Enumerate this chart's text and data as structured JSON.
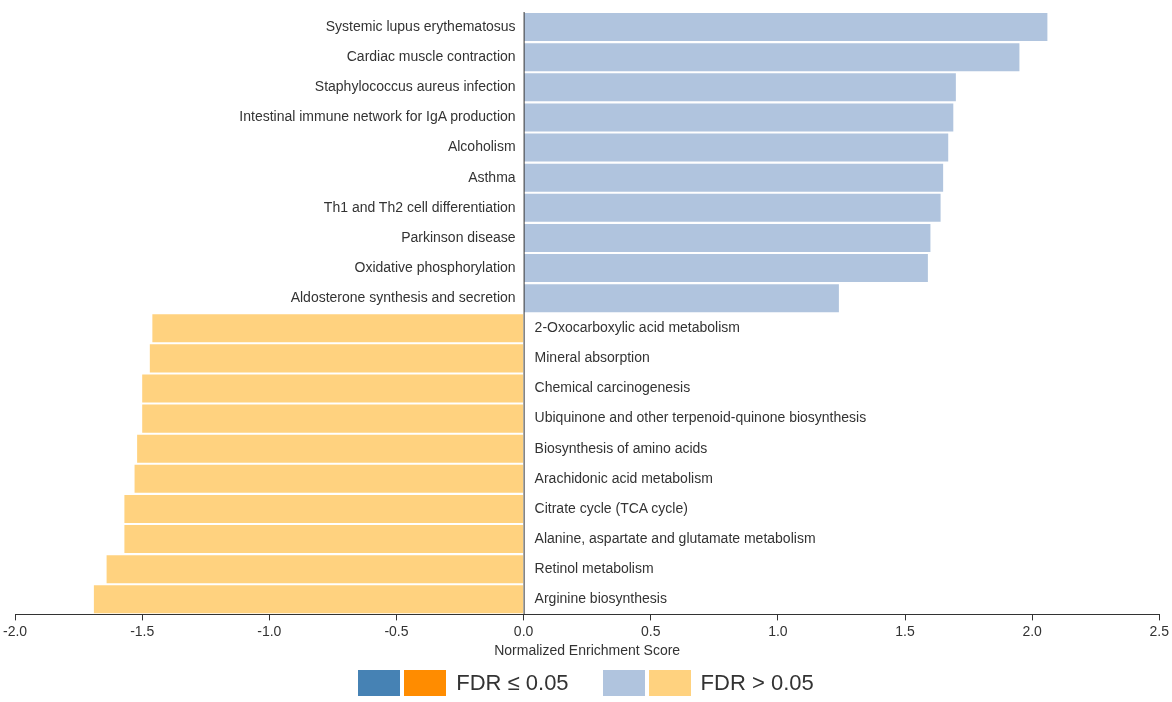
{
  "chart_data": {
    "type": "bar",
    "orientation": "horizontal",
    "xlabel": "Normalized Enrichment Score",
    "categories": [
      "Systemic lupus erythematosus",
      "Cardiac muscle contraction",
      "Staphylococcus aureus infection",
      "Intestinal immune network for IgA production",
      "Alcoholism",
      "Asthma",
      "Th1 and Th2 cell differentiation",
      "Parkinson disease",
      "Oxidative phosphorylation",
      "Aldosterone synthesis and secretion",
      "2-Oxocarboxylic acid metabolism",
      "Mineral absorption",
      "Chemical carcinogenesis",
      "Ubiquinone and other terpenoid-quinone biosynthesis",
      "Biosynthesis of amino acids",
      "Arachidonic acid metabolism",
      "Citrate cycle (TCA cycle)",
      "Alanine, aspartate and glutamate metabolism",
      "Retinol metabolism",
      "Arginine biosynthesis"
    ],
    "series": [
      {
        "name": "FDR ≤ 0.05",
        "colors": [
          "#4682b4",
          "#4682b4",
          "#4682b4",
          "#4682b4",
          "#4682b4",
          "#4682b4",
          "#4682b4",
          "#4682b4",
          "#4682b4",
          "#4682b4",
          "#ff8c00",
          "#ff8c00",
          "#ff8c00",
          "#ff8c00",
          "#ff8c00",
          "#ff8c00",
          "#ff8c00",
          "#ff8c00",
          "#ff8c00",
          "#ff8c00"
        ],
        "values": [
          null,
          null,
          null,
          null,
          null,
          null,
          null,
          null,
          null,
          null,
          null,
          null,
          null,
          null,
          null,
          null,
          null,
          null,
          null,
          null
        ]
      },
      {
        "name": "FDR > 0.05",
        "colors": [
          "#b0c4de",
          "#b0c4de",
          "#b0c4de",
          "#b0c4de",
          "#b0c4de",
          "#b0c4de",
          "#b0c4de",
          "#b0c4de",
          "#b0c4de",
          "#b0c4de",
          "#ffd27f",
          "#ffd27f",
          "#ffd27f",
          "#ffd27f",
          "#ffd27f",
          "#ffd27f",
          "#ffd27f",
          "#ffd27f",
          "#ffd27f",
          "#ffd27f"
        ],
        "values": [
          2.06,
          1.95,
          1.7,
          1.69,
          1.67,
          1.65,
          1.64,
          1.6,
          1.59,
          1.24,
          -1.46,
          -1.47,
          -1.5,
          -1.5,
          -1.52,
          -1.53,
          -1.57,
          -1.57,
          -1.64,
          -1.69
        ]
      }
    ],
    "xlim": [
      -2,
      2.5
    ],
    "xticks": [
      {
        "value": -2,
        "label": "-2.0"
      },
      {
        "value": -1.5,
        "label": "-1.5"
      },
      {
        "value": -1,
        "label": "-1.0"
      },
      {
        "value": -0.5,
        "label": "-0.5"
      },
      {
        "value": 0,
        "label": "0.0"
      },
      {
        "value": 0.5,
        "label": "0.5"
      },
      {
        "value": 1,
        "label": "1.0"
      },
      {
        "value": 1.5,
        "label": "1.5"
      },
      {
        "value": 2,
        "label": "2.0"
      },
      {
        "value": 2.5,
        "label": "2.5"
      }
    ],
    "grid": false,
    "legend": "bottom"
  }
}
